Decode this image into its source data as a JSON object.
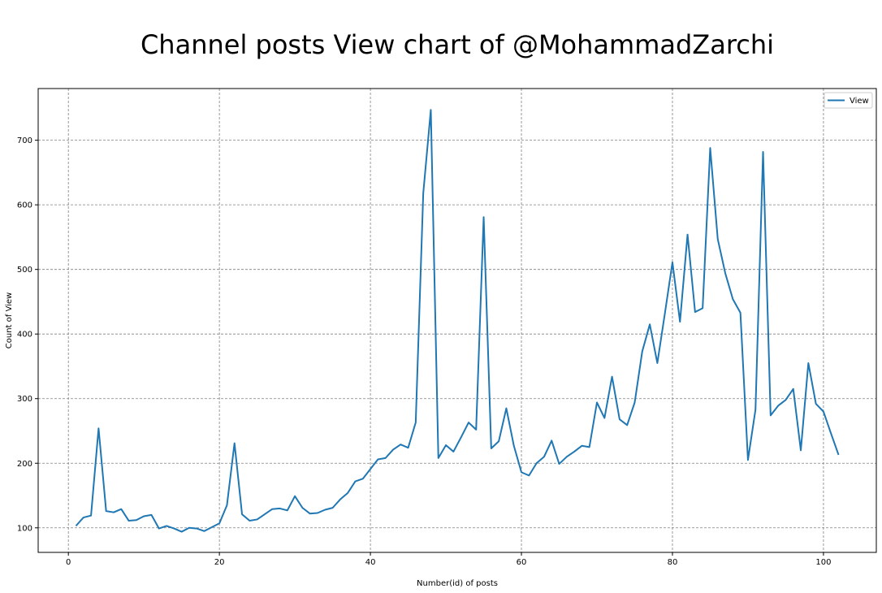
{
  "chart_data": {
    "type": "line",
    "title": "Channel posts View chart of @MohammadZarchi",
    "xlabel": "Number(id) of posts",
    "ylabel": "Count of View",
    "xlim": [
      -4,
      107
    ],
    "ylim": [
      62,
      780
    ],
    "xticks": [
      0,
      20,
      40,
      60,
      80,
      100
    ],
    "yticks": [
      100,
      200,
      300,
      400,
      500,
      600,
      700
    ],
    "grid": true,
    "legend_position": "top-right",
    "series": [
      {
        "name": "View",
        "color": "#1f77b4",
        "x": [
          1,
          2,
          3,
          4,
          5,
          6,
          7,
          8,
          9,
          10,
          11,
          12,
          13,
          14,
          15,
          16,
          17,
          18,
          19,
          20,
          21,
          22,
          23,
          24,
          25,
          26,
          27,
          28,
          29,
          30,
          31,
          32,
          33,
          34,
          35,
          36,
          37,
          38,
          39,
          40,
          41,
          42,
          43,
          44,
          45,
          46,
          47,
          48,
          49,
          50,
          51,
          52,
          53,
          54,
          55,
          56,
          57,
          58,
          59,
          60,
          61,
          62,
          63,
          64,
          65,
          66,
          67,
          68,
          69,
          70,
          71,
          72,
          73,
          74,
          75,
          76,
          77,
          78,
          79,
          80,
          81,
          82,
          83,
          84,
          85,
          86,
          87,
          88,
          89,
          90,
          91,
          92,
          93,
          94,
          95,
          96,
          97,
          98,
          99,
          100,
          101,
          102
        ],
        "y": [
          103,
          116,
          119,
          254,
          126,
          124,
          129,
          111,
          112,
          118,
          120,
          99,
          103,
          99,
          94,
          100,
          99,
          95,
          101,
          107,
          135,
          231,
          121,
          111,
          113,
          121,
          129,
          130,
          127,
          149,
          131,
          122,
          123,
          128,
          131,
          144,
          154,
          172,
          176,
          191,
          206,
          208,
          221,
          229,
          224,
          263,
          618,
          747,
          208,
          228,
          218,
          240,
          263,
          252,
          581,
          223,
          234,
          285,
          227,
          186,
          181,
          200,
          210,
          235,
          199,
          210,
          218,
          227,
          225,
          294,
          270,
          334,
          268,
          259,
          294,
          373,
          415,
          355,
          432,
          511,
          419,
          554,
          434,
          440,
          688,
          547,
          494,
          454,
          433,
          205,
          283,
          682,
          274,
          289,
          298,
          315,
          220,
          355,
          292,
          280,
          246,
          213
        ]
      }
    ]
  }
}
